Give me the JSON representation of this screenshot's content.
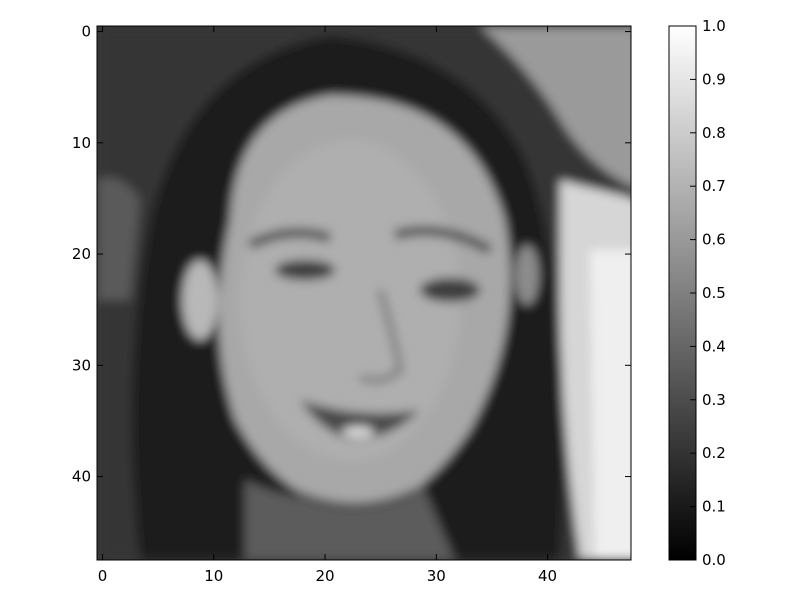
{
  "chart_data": {
    "type": "heatmap",
    "title": "",
    "xlabel": "",
    "ylabel": "",
    "colormap": "gray",
    "image_shape": [
      48,
      48
    ],
    "subject": "grayscale face image",
    "xlim": [
      -0.5,
      47.5
    ],
    "ylim": [
      47.5,
      -0.5
    ],
    "x_ticks": [
      0,
      10,
      20,
      30,
      40
    ],
    "x_tick_labels": [
      "0",
      "10",
      "20",
      "30",
      "40"
    ],
    "y_ticks": [
      0,
      10,
      20,
      30,
      40
    ],
    "y_tick_labels": [
      "0",
      "10",
      "20",
      "30",
      "40"
    ],
    "colorbar": {
      "range": [
        0.0,
        1.0
      ],
      "ticks": [
        0.0,
        0.1,
        0.2,
        0.3,
        0.4,
        0.5,
        0.6,
        0.7,
        0.8,
        0.9,
        1.0
      ],
      "tick_labels": [
        "0.0",
        "0.1",
        "0.2",
        "0.3",
        "0.4",
        "0.5",
        "0.6",
        "0.7",
        "0.8",
        "0.9",
        "1.0"
      ],
      "color_low": "#000000",
      "color_high": "#ffffff"
    }
  }
}
